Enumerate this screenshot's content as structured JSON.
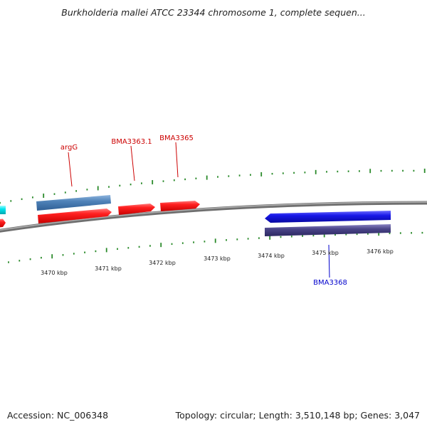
{
  "title": "Burkholderia mallei ATCC 23344 chromosome 1, complete sequen...",
  "footer": {
    "accession": "Accession: NC_006348",
    "summary": "Topology: circular; Length: 3,510,148 bp; Genes: 3,047"
  },
  "colors": {
    "background": "#ffffff",
    "backbone": "#888888",
    "tick": "#2a8a2a",
    "gene_red": "#ee1111",
    "gene_steelblue": "#4f82b8",
    "gene_blue": "#1818e8",
    "gene_slate": "#4a4488",
    "gene_cyan": "#00e5ee",
    "label_red": "#cc0000",
    "label_blue": "#0000cc"
  },
  "scale": {
    "unit": "kbp",
    "labels": [
      "3470 kbp",
      "3471 kbp",
      "3472 kbp",
      "3473 kbp",
      "3474 kbp",
      "3475 kbp",
      "3476 kbp"
    ]
  },
  "genes": [
    {
      "id": "cyan-fragment",
      "color": "cyan"
    },
    {
      "id": "red-fragment",
      "color": "red"
    },
    {
      "id": "steelblue-gene",
      "color": "steelblue"
    },
    {
      "id": "argG-gene",
      "color": "red",
      "label": "argG"
    },
    {
      "id": "BMA3363.1-gene",
      "color": "red",
      "label": "BMA3363.1"
    },
    {
      "id": "BMA3365-gene",
      "color": "red",
      "label": "BMA3365"
    },
    {
      "id": "BMA3368-gene",
      "color": "blue",
      "label": "BMA3368"
    },
    {
      "id": "slate-gene",
      "color": "slate"
    }
  ]
}
